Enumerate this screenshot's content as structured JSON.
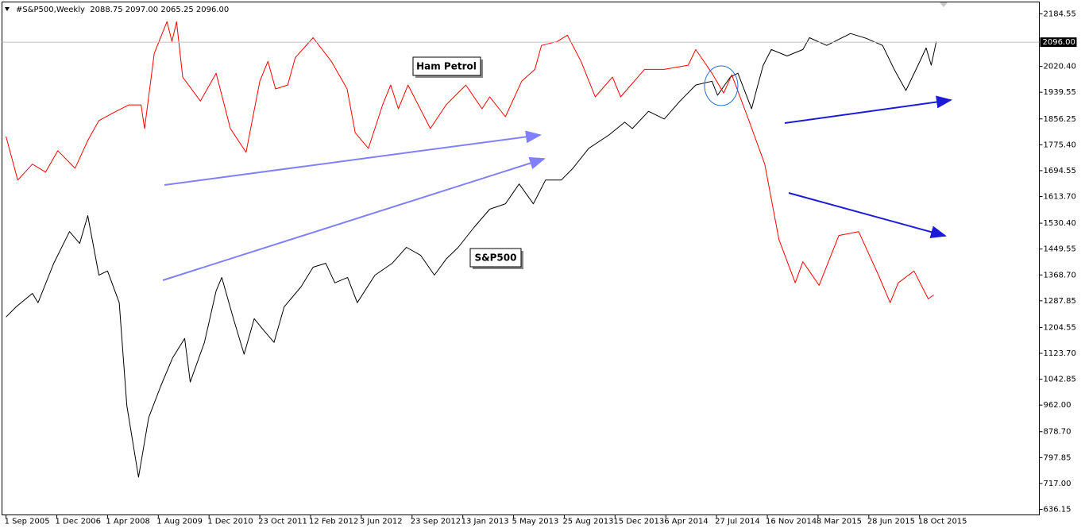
{
  "chart_data": {
    "type": "line",
    "title": "#S&P500,Weekly  2088.75 2097.00 2065.25 2096.00",
    "xlim": [
      -0.08,
      20.36
    ],
    "xticks": [
      {
        "value": 0,
        "label": "1 Sep 2005"
      },
      {
        "value": 1,
        "label": "1 Dec 2006"
      },
      {
        "value": 2,
        "label": "1 Apr 2008"
      },
      {
        "value": 3,
        "label": "1 Aug 2009"
      },
      {
        "value": 4,
        "label": "1 Dec 2010"
      },
      {
        "value": 5,
        "label": "23 Oct 2011"
      },
      {
        "value": 6,
        "label": "12 Feb 2012"
      },
      {
        "value": 7,
        "label": "3 Jun 2012"
      },
      {
        "value": 8,
        "label": "23 Sep 2012"
      },
      {
        "value": 9,
        "label": "13 Jan 2013"
      },
      {
        "value": 10,
        "label": "5 May 2013"
      },
      {
        "value": 11,
        "label": "25 Aug 2013"
      },
      {
        "value": 12,
        "label": "15 Dec 2013"
      },
      {
        "value": 13,
        "label": "6 Apr 2014"
      },
      {
        "value": 14,
        "label": "27 Jul 2014"
      },
      {
        "value": 15,
        "label": "16 Nov 2014"
      },
      {
        "value": 16,
        "label": "8 Mar 2015"
      },
      {
        "value": 17,
        "label": "28 Jun 2015"
      },
      {
        "value": 18,
        "label": "18 Oct 2015"
      }
    ],
    "ylim": [
      618.8,
      2221.6
    ],
    "yticks": [
      {
        "value": 2184.55,
        "label": "2184.55"
      },
      {
        "value": 2020.4,
        "label": "2020.40"
      },
      {
        "value": 1939.55,
        "label": "1939.55"
      },
      {
        "value": 1856.25,
        "label": "1856.25"
      },
      {
        "value": 1775.4,
        "label": "1775.40"
      },
      {
        "value": 1694.55,
        "label": "1694.55"
      },
      {
        "value": 1613.7,
        "label": "1613.70"
      },
      {
        "value": 1530.4,
        "label": "1530.40"
      },
      {
        "value": 1449.55,
        "label": "1449.55"
      },
      {
        "value": 1368.7,
        "label": "1368.70"
      },
      {
        "value": 1287.85,
        "label": "1287.85"
      },
      {
        "value": 1204.55,
        "label": "1204.55"
      },
      {
        "value": 1123.7,
        "label": "1123.70"
      },
      {
        "value": 1042.85,
        "label": "1042.85"
      },
      {
        "value": 962,
        "label": "962.00"
      },
      {
        "value": 878.7,
        "label": "878.70"
      },
      {
        "value": 797.85,
        "label": "797.85"
      },
      {
        "value": 717,
        "label": "717.00"
      },
      {
        "value": 636.15,
        "label": "636.15"
      }
    ],
    "last_price": {
      "value": 2096,
      "label": "2096.00"
    },
    "grid": false,
    "series": [
      {
        "name": "S&P500",
        "color": "#000000",
        "x": [
          0.0,
          0.2,
          0.52,
          0.63,
          0.94,
          1.25,
          1.45,
          1.61,
          1.83,
          2.0,
          2.23,
          2.38,
          2.61,
          2.81,
          3.05,
          3.28,
          3.52,
          3.63,
          3.91,
          4.14,
          4.25,
          4.48,
          4.69,
          4.89,
          5.08,
          5.28,
          5.48,
          5.81,
          6.05,
          6.3,
          6.48,
          6.73,
          6.92,
          7.27,
          7.61,
          7.89,
          8.17,
          8.44,
          8.67,
          8.91,
          9.22,
          9.53,
          9.84,
          10.11,
          10.39,
          10.63,
          10.94,
          11.17,
          11.48,
          11.88,
          12.19,
          12.34,
          12.66,
          12.97,
          13.28,
          13.59,
          13.91,
          14.02,
          14.27,
          14.42,
          14.53,
          14.69,
          14.8,
          14.92,
          15.08,
          15.39,
          15.7,
          15.83,
          16.17,
          16.64,
          16.95,
          17.27,
          17.5,
          17.73,
          17.97,
          18.13,
          18.23,
          18.33
        ],
        "values": [
          1237,
          1269,
          1311,
          1282,
          1405,
          1504,
          1467,
          1554,
          1368,
          1381,
          1282,
          960,
          737,
          923,
          1022,
          1109,
          1170,
          1034,
          1158,
          1319,
          1361,
          1232,
          1121,
          1232,
          1195,
          1158,
          1269,
          1331,
          1393,
          1405,
          1344,
          1361,
          1282,
          1368,
          1405,
          1455,
          1430,
          1368,
          1418,
          1455,
          1517,
          1574,
          1591,
          1653,
          1591,
          1665,
          1665,
          1702,
          1764,
          1806,
          1846,
          1826,
          1880,
          1856,
          1912,
          1962,
          1974,
          1930,
          1987,
          1999,
          1954,
          1888,
          1954,
          2024,
          2073,
          2053,
          2073,
          2110,
          2086,
          2123,
          2108,
          2086,
          2011,
          1945,
          2024,
          2078,
          2024,
          2098
        ]
      },
      {
        "name": "Ham Petrol",
        "color": "#ff0000",
        "x": [
          0.0,
          0.23,
          0.52,
          0.78,
          1.02,
          1.36,
          1.61,
          1.83,
          2.11,
          2.42,
          2.66,
          2.73,
          2.92,
          3.17,
          3.27,
          3.36,
          3.48,
          3.83,
          4.14,
          4.42,
          4.73,
          5.0,
          5.16,
          5.31,
          5.55,
          5.7,
          6.05,
          6.41,
          6.72,
          6.88,
          7.14,
          7.42,
          7.58,
          7.73,
          7.92,
          8.36,
          8.67,
          9.06,
          9.38,
          9.53,
          9.84,
          10.16,
          10.42,
          10.55,
          10.86,
          11.06,
          11.33,
          11.61,
          11.95,
          12.11,
          12.58,
          12.97,
          13.44,
          13.59,
          13.91,
          14.14,
          14.3,
          14.61,
          14.95,
          15.23,
          15.55,
          15.7,
          16.02,
          16.41,
          16.8,
          17.19,
          17.42,
          17.58,
          17.89,
          18.17,
          18.28
        ],
        "values": [
          1801,
          1665,
          1715,
          1690,
          1757,
          1702,
          1789,
          1851,
          1875,
          1900,
          1900,
          1826,
          2061,
          2160,
          2098,
          2160,
          1987,
          1912,
          1999,
          1826,
          1752,
          1974,
          2036,
          1950,
          1962,
          2048,
          2110,
          2036,
          1950,
          1813,
          1764,
          1900,
          1962,
          1888,
          1962,
          1826,
          1900,
          1962,
          1888,
          1925,
          1863,
          1974,
          2011,
          2086,
          2098,
          2118,
          2036,
          1925,
          1987,
          1925,
          2011,
          2011,
          2024,
          2073,
          1999,
          1937,
          1994,
          1863,
          1715,
          1479,
          1344,
          1410,
          1336,
          1492,
          1504,
          1368,
          1282,
          1344,
          1381,
          1294,
          1306
        ]
      }
    ]
  }
}
